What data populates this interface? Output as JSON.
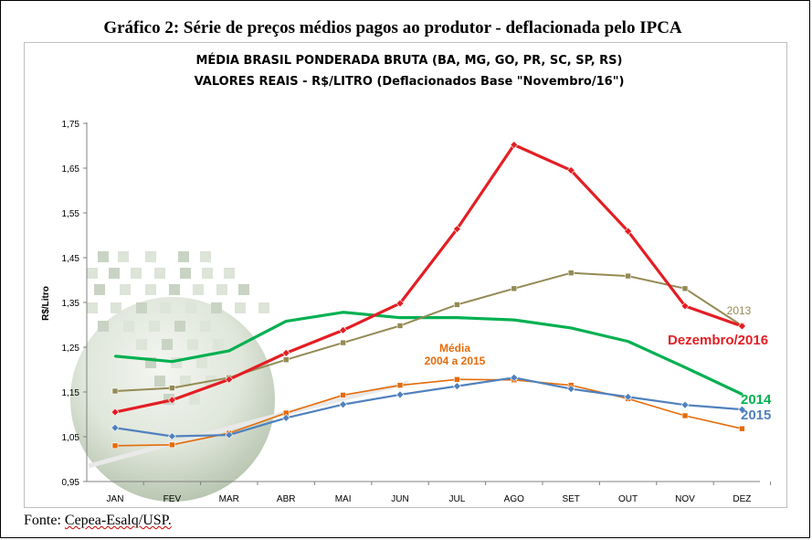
{
  "title": "Gráfico 2: Série de preços médios pagos ao produtor - deflacionada pelo IPCA",
  "source": {
    "prefix": "Fonte: ",
    "text": "Cepea-Esalq/USP."
  },
  "chart_data": {
    "type": "line",
    "subtitle": [
      "MÉDIA BRASIL PONDERADA BRUTA (BA, MG, GO, PR, SC, SP, RS)",
      "VALORES REAIS - R$/LITRO (Deflacionados Base \"Novembro/16\")"
    ],
    "xlabel": "",
    "ylabel": "R$/Litro",
    "ylim": [
      0.95,
      1.75
    ],
    "yticks": [
      0.95,
      1.05,
      1.15,
      1.25,
      1.35,
      1.45,
      1.55,
      1.65,
      1.75
    ],
    "ytick_labels": [
      "0,95",
      "1,05",
      "1,15",
      "1,25",
      "1,35",
      "1,45",
      "1,55",
      "1,65",
      "1,75"
    ],
    "categories": [
      "JAN",
      "FEV",
      "MAR",
      "ABR",
      "MAI",
      "JUN",
      "JUL",
      "AGO",
      "SET",
      "OUT",
      "NOV",
      "DEZ"
    ],
    "grid": false,
    "series": [
      {
        "name": "Média 2004 a 2015",
        "label_lines": [
          "Média",
          "2004 a 2015"
        ],
        "color": "#e46c0a",
        "values": [
          1.03,
          1.032,
          1.058,
          1.103,
          1.143,
          1.165,
          1.178,
          1.177,
          1.165,
          1.135,
          1.097,
          1.068
        ]
      },
      {
        "name": "2015",
        "label_lines": [
          "2015"
        ],
        "color": "#4f81bd",
        "values": [
          1.07,
          1.051,
          1.054,
          1.092,
          1.122,
          1.144,
          1.163,
          1.182,
          1.157,
          1.139,
          1.121,
          1.111
        ]
      },
      {
        "name": "2014",
        "label_lines": [
          "2014"
        ],
        "color": "#00b050",
        "values": [
          1.23,
          1.218,
          1.242,
          1.308,
          1.328,
          1.316,
          1.316,
          1.311,
          1.293,
          1.263,
          1.205,
          1.145
        ]
      },
      {
        "name": "2013",
        "label_lines": [
          "2013"
        ],
        "color": "#948a54",
        "values": [
          1.152,
          1.159,
          1.182,
          1.222,
          1.26,
          1.298,
          1.345,
          1.381,
          1.416,
          1.409,
          1.381,
          1.298
        ]
      },
      {
        "name": "Dezembro/2016",
        "label_lines": [
          "Dezembro/2016"
        ],
        "color": "#e31e24",
        "values": [
          1.105,
          1.132,
          1.178,
          1.237,
          1.288,
          1.348,
          1.514,
          1.702,
          1.645,
          1.509,
          1.342,
          1.297
        ]
      }
    ]
  }
}
